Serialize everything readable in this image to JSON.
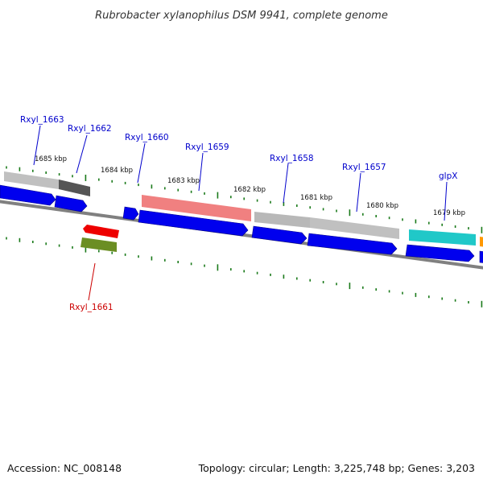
{
  "title": "Rubrobacter xylanophilus DSM 9941, complete genome",
  "footer": {
    "accession": "Accession: NC_008148",
    "topology": "Topology: circular; Length: 3,225,748 bp; Genes: 3,203"
  },
  "colors": {
    "backbone": "#808080",
    "tick": "#1a7a1a",
    "cds": "#0000ee",
    "label_forward": "#0000cc",
    "label_reverse": "#cc0000"
  },
  "scale_labels": [
    "1685 kbp",
    "1684 kbp",
    "1683 kbp",
    "1682 kbp",
    "1681 kbp",
    "1680 kbp",
    "1679 kbp"
  ],
  "genes": [
    {
      "name": "Rxyl_1663",
      "strand": "forward",
      "feature_color": "#c0c0c0"
    },
    {
      "name": "Rxyl_1662",
      "strand": "forward",
      "feature_color": "#555555"
    },
    {
      "name": "Rxyl_1660",
      "strand": "forward",
      "feature_color": "#0000ee"
    },
    {
      "name": "Rxyl_1659",
      "strand": "forward",
      "feature_color": "#f08080"
    },
    {
      "name": "Rxyl_1658",
      "strand": "forward",
      "feature_color": "#b8b8b8"
    },
    {
      "name": "Rxyl_1657",
      "strand": "forward",
      "feature_color": "#c0c0c0"
    },
    {
      "name": "glpX",
      "strand": "forward",
      "feature_color": "#20c8c8"
    },
    {
      "name": "Rxyl_1661",
      "strand": "reverse",
      "feature_color": "#ee0000"
    }
  ]
}
